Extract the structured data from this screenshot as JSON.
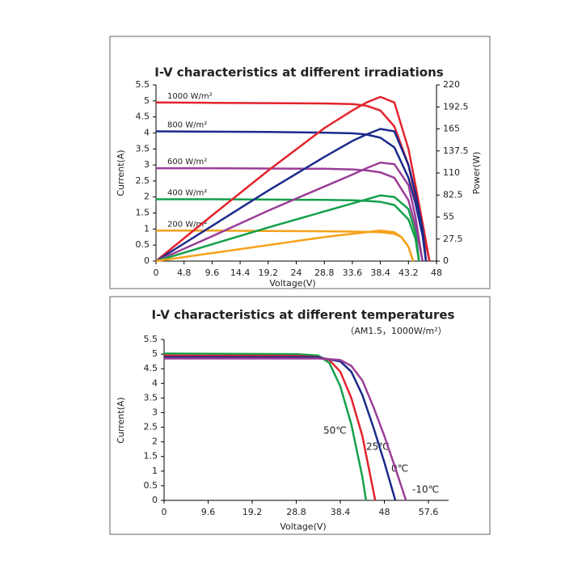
{
  "chart_data": [
    {
      "type": "line",
      "title": "I-V characteristics at different irradiations",
      "x_label": "Voltage(V)",
      "y_label": "Current(A)",
      "y2_label": "Power(W)",
      "xlim": [
        0,
        48
      ],
      "xticks": [
        0,
        4.8,
        9.6,
        14.4,
        19.2,
        24,
        28.8,
        33.6,
        38.4,
        43.2,
        48
      ],
      "ylim": [
        0,
        5.5
      ],
      "yticks": [
        0,
        0.5,
        1,
        1.5,
        2,
        2.5,
        3,
        3.5,
        4,
        4.5,
        5,
        5.5
      ],
      "y2lim": [
        0,
        220
      ],
      "y2ticks": [
        0,
        27.5,
        55,
        82.5,
        110,
        137.5,
        165,
        192.5,
        220
      ],
      "series": [
        {
          "name": "1000 W/m²",
          "color": "#e3232c",
          "x": [
            0,
            9.6,
            19.2,
            28.8,
            33.6,
            36,
            38.4,
            40.8,
            43.2,
            44.4,
            45.6,
            46.8
          ],
          "values": [
            4.95,
            4.94,
            4.93,
            4.92,
            4.9,
            4.85,
            4.7,
            4.2,
            3.0,
            2.0,
            1.0,
            0
          ]
        },
        {
          "name": "800 W/m²",
          "color": "#1c2a8c",
          "x": [
            0,
            9.6,
            19.2,
            28.8,
            33.6,
            36,
            38.4,
            40.8,
            43.2,
            44.4,
            45.6,
            46.2
          ],
          "values": [
            4.05,
            4.04,
            4.03,
            4.01,
            3.99,
            3.95,
            3.85,
            3.55,
            2.6,
            1.8,
            0.8,
            0
          ]
        },
        {
          "name": "600 W/m²",
          "color": "#9a3e97",
          "x": [
            0,
            9.6,
            19.2,
            28.8,
            33.6,
            36,
            38.4,
            40.8,
            43.2,
            44.4,
            45.6
          ],
          "values": [
            2.9,
            2.9,
            2.89,
            2.88,
            2.86,
            2.83,
            2.77,
            2.6,
            1.9,
            1.1,
            0
          ]
        },
        {
          "name": "400 W/m²",
          "color": "#13a04a",
          "x": [
            0,
            9.6,
            19.2,
            28.8,
            33.6,
            36,
            38.4,
            40.8,
            43.2,
            44.4,
            45
          ],
          "values": [
            1.93,
            1.93,
            1.92,
            1.91,
            1.9,
            1.88,
            1.85,
            1.75,
            1.3,
            0.7,
            0
          ]
        },
        {
          "name": "200 W/m²",
          "color": "#f5a21b",
          "x": [
            0,
            9.6,
            19.2,
            28.8,
            33.6,
            36,
            38.4,
            40.8,
            42,
            43.2,
            44
          ],
          "values": [
            0.95,
            0.95,
            0.94,
            0.93,
            0.92,
            0.91,
            0.9,
            0.85,
            0.75,
            0.45,
            0
          ]
        },
        {
          "color": "#e3232c",
          "axis": "y2",
          "x": [
            0,
            9.6,
            19.2,
            28.8,
            33.6,
            36,
            38.4,
            40.8,
            43.2,
            44.4,
            45.6,
            46.8
          ],
          "values": [
            0,
            57,
            113,
            166,
            188,
            198,
            205,
            198,
            140,
            95,
            48,
            0
          ]
        },
        {
          "color": "#1c2a8c",
          "axis": "y2",
          "x": [
            0,
            9.6,
            19.2,
            28.8,
            33.6,
            36,
            38.4,
            40.8,
            43.2,
            44.4,
            45.6,
            46.2
          ],
          "values": [
            0,
            44,
            88,
            130,
            150,
            158,
            165,
            162,
            120,
            85,
            40,
            0
          ]
        },
        {
          "color": "#9a3e97",
          "axis": "y2",
          "x": [
            0,
            9.6,
            19.2,
            28.8,
            33.6,
            36,
            38.4,
            40.8,
            43.2,
            44.4,
            45.6
          ],
          "values": [
            0,
            31,
            63,
            93,
            108,
            116,
            123,
            121,
            95,
            55,
            0
          ]
        },
        {
          "color": "#13a04a",
          "axis": "y2",
          "x": [
            0,
            9.6,
            19.2,
            28.8,
            33.6,
            36,
            38.4,
            40.8,
            43.2,
            44.4,
            45
          ],
          "values": [
            0,
            21,
            42,
            62,
            72,
            77,
            82,
            80,
            65,
            35,
            0
          ]
        },
        {
          "color": "#f5a21b",
          "axis": "y2",
          "x": [
            0,
            9.6,
            19.2,
            28.8,
            33.6,
            36,
            38.4,
            40.8,
            42,
            43.2,
            44
          ],
          "values": [
            0,
            10,
            20,
            30,
            34,
            36,
            38,
            36,
            30,
            18,
            0
          ]
        }
      ]
    },
    {
      "type": "line",
      "title": "I-V characteristics at different temperatures",
      "subtitle": "（AM1.5，1000W/m²）",
      "x_label": "Voltage(V)",
      "y_label": "Current(A)",
      "xlim": [
        0,
        62
      ],
      "xticks": [
        0,
        9.6,
        19.2,
        28.8,
        38.4,
        48,
        57.6
      ],
      "ylim": [
        0,
        5.5
      ],
      "yticks": [
        0,
        0.5,
        1,
        1.5,
        2,
        2.5,
        3,
        3.5,
        4,
        4.5,
        5,
        5.5
      ],
      "series": [
        {
          "name": "50℃",
          "color": "#13a04a",
          "x": [
            0,
            28.8,
            33.6,
            36,
            38.4,
            40.8,
            43.2,
            44
          ],
          "values": [
            5.02,
            5.0,
            4.95,
            4.7,
            3.9,
            2.6,
            0.8,
            0
          ]
        },
        {
          "name": "25℃",
          "color": "#e3232c",
          "x": [
            0,
            28.8,
            33.6,
            36,
            38.4,
            40.8,
            43.2,
            46
          ],
          "values": [
            4.95,
            4.94,
            4.9,
            4.8,
            4.4,
            3.5,
            2.2,
            0
          ]
        },
        {
          "name": "0℃",
          "color": "#1c2a8c",
          "x": [
            0,
            28.8,
            33.6,
            38.4,
            40.8,
            43.2,
            45.6,
            48,
            50.4
          ],
          "values": [
            4.9,
            4.9,
            4.89,
            4.75,
            4.4,
            3.6,
            2.5,
            1.3,
            0
          ]
        },
        {
          "name": "-10℃",
          "color": "#9a3e97",
          "x": [
            0,
            28.8,
            33.6,
            38.4,
            40.8,
            43.2,
            45.6,
            48,
            50.4,
            52.7
          ],
          "values": [
            4.85,
            4.85,
            4.85,
            4.8,
            4.6,
            4.1,
            3.2,
            2.2,
            1.1,
            0
          ]
        }
      ]
    }
  ]
}
